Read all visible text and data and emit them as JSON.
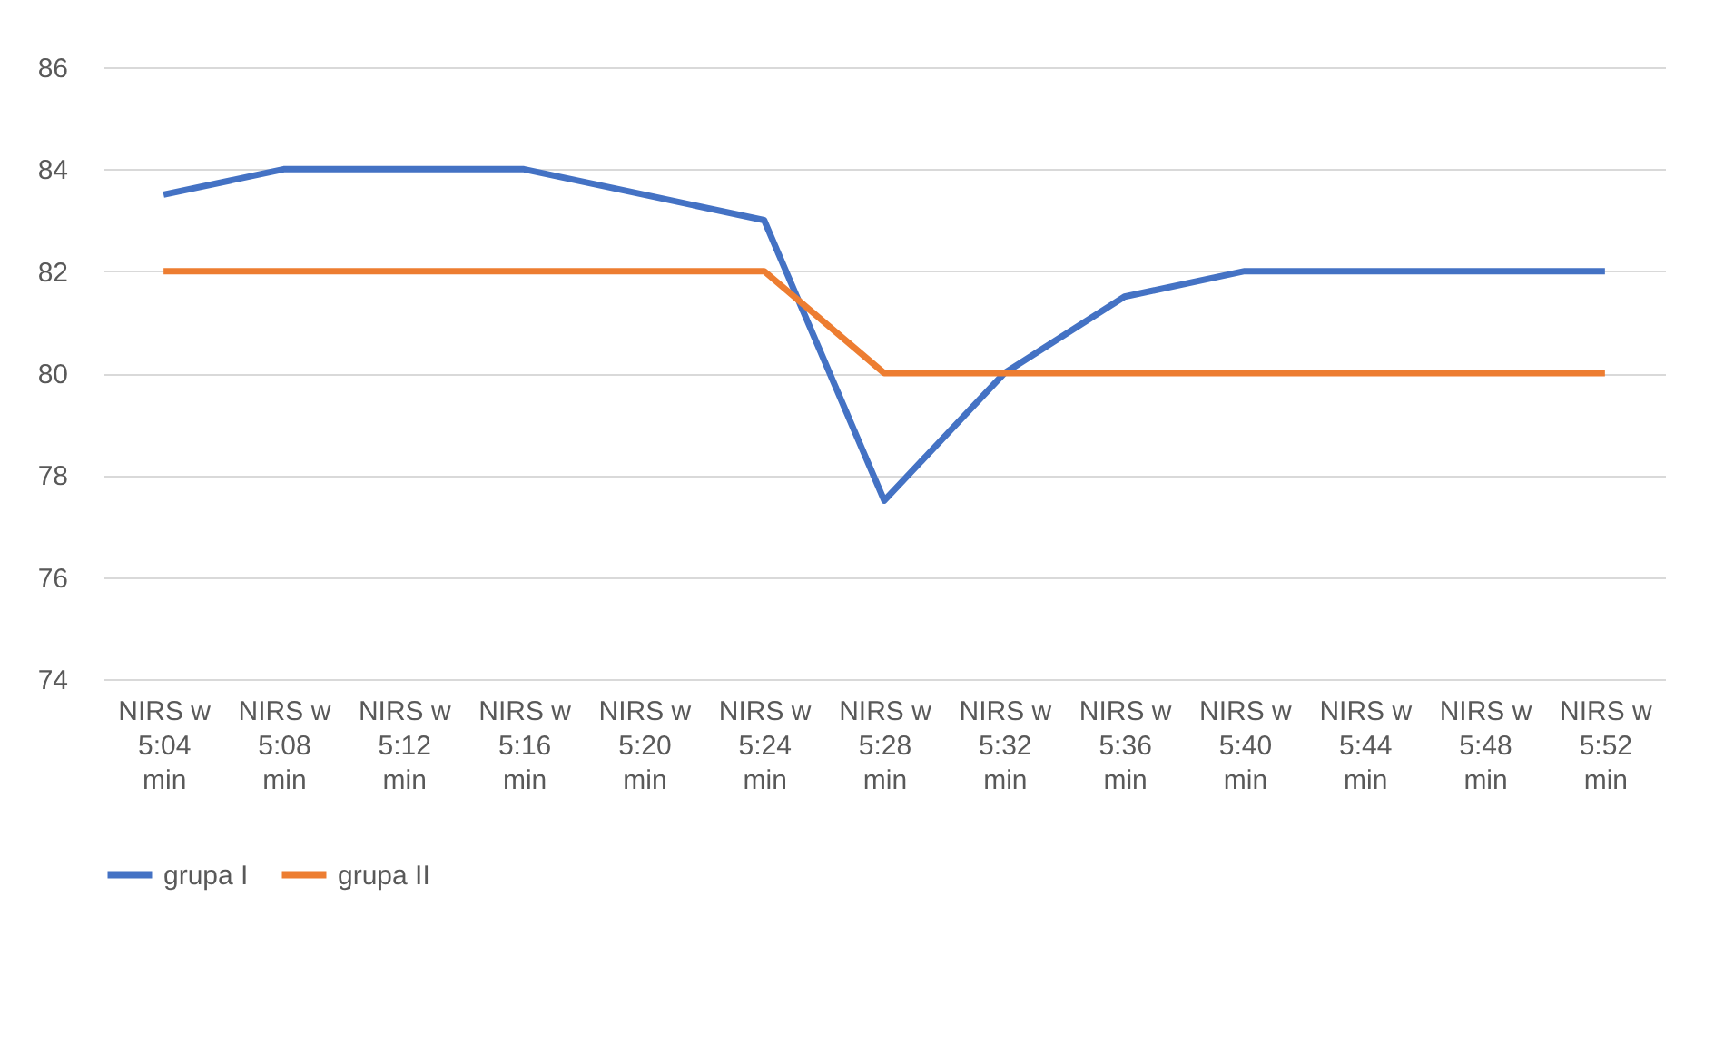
{
  "chart_data": {
    "type": "line",
    "categories": [
      "NIRS w 5:04 min",
      "NIRS w 5:08 min",
      "NIRS w 5:12 min",
      "NIRS w 5:16 min",
      "NIRS w 5:20 min",
      "NIRS w 5:24 min",
      "NIRS w 5:28 min",
      "NIRS w 5:32 min",
      "NIRS w 5:36 min",
      "NIRS w 5:40 min",
      "NIRS w 5:44 min",
      "NIRS w 5:48 min",
      "NIRS w 5:52 min"
    ],
    "series": [
      {
        "name": "grupa I",
        "color": "#4472c4",
        "values": [
          83.5,
          84,
          84,
          84,
          83.5,
          83,
          77.5,
          80,
          81.5,
          82,
          82,
          82,
          82
        ]
      },
      {
        "name": "grupa II",
        "color": "#ed7d31",
        "values": [
          82,
          82,
          82,
          82,
          82,
          82,
          80,
          80,
          80,
          80,
          80,
          80,
          80
        ]
      }
    ],
    "ylim": [
      74,
      86
    ],
    "yticks": [
      74,
      76,
      78,
      80,
      82,
      84,
      86
    ],
    "grid": "y",
    "legend": "bottom",
    "marker": "none",
    "line_style": "solid"
  }
}
